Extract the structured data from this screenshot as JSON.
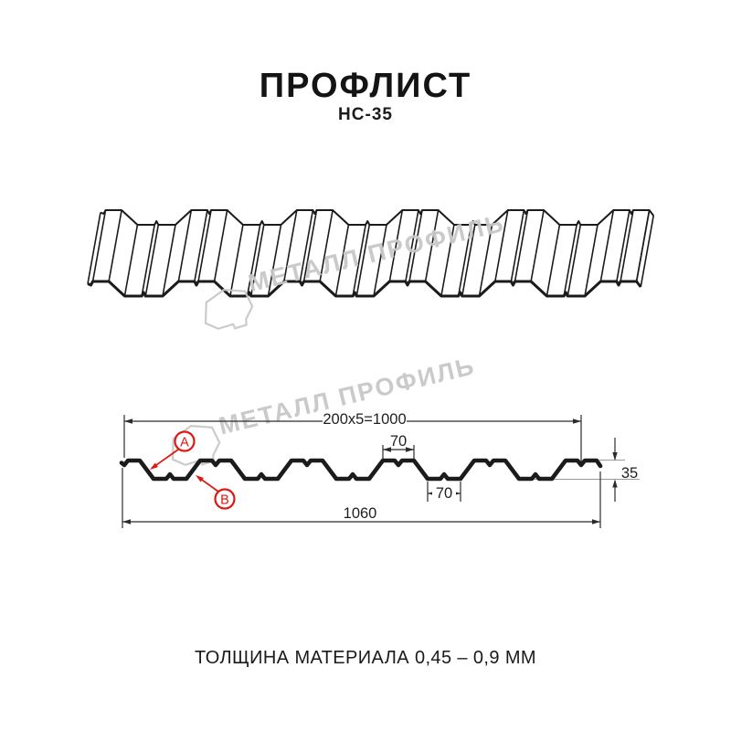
{
  "header": {
    "title": "ПРОФЛИСТ",
    "subtitle": "НС-35"
  },
  "watermark": {
    "brand": "МЕТАЛЛ ПРОФИЛЬ"
  },
  "cross_section": {
    "dim_top": "200x5=1000",
    "dim_rib_top_width": "70",
    "dim_rib_bottom_width": "70",
    "dim_height": "35",
    "dim_total_width": "1060",
    "label_a": "A",
    "label_b": "B"
  },
  "footer": {
    "thickness_note": "ТОЛЩИНА МАТЕРИАЛА 0,45 – 0,9 ММ"
  },
  "colors": {
    "line": "#1b1b1b",
    "dim_line": "#2b2b2b",
    "accent_red": "#e01812",
    "watermark_gray": "#c8c8c8",
    "ref_gray": "#9a9a9a"
  }
}
